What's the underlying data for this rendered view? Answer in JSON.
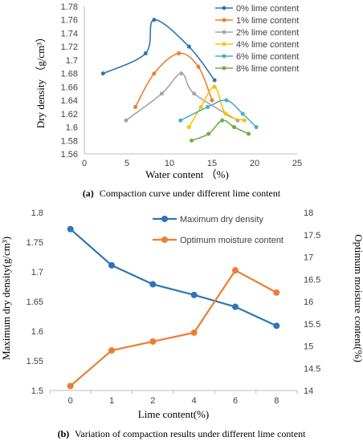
{
  "chart_data": [
    {
      "type": "scatter",
      "panel": "a",
      "caption_label": "(a)",
      "caption": "Compaction curve under different lime content",
      "xlabel": "Water content （%)",
      "ylabel": "Dry density （g/cm³）",
      "xlim": [
        0,
        25
      ],
      "ylim": [
        1.56,
        1.78
      ],
      "xticks": [
        "0",
        "5",
        "10",
        "15",
        "20",
        "25"
      ],
      "yticks": [
        "1.56",
        "1.58",
        "1.6",
        "1.62",
        "1.64",
        "1.66",
        "1.68",
        "1.7",
        "1.72",
        "1.74",
        "1.76",
        "1.78"
      ],
      "legend_position": "top-right",
      "series": [
        {
          "name": "0% lime content",
          "color": "#2e75b6",
          "points": [
            [
              2.2,
              1.68
            ],
            [
              7.2,
              1.71
            ],
            [
              8.2,
              1.76
            ],
            [
              12.3,
              1.72
            ],
            [
              15.3,
              1.67
            ]
          ]
        },
        {
          "name": "1% lime content",
          "color": "#ed7d31",
          "points": [
            [
              6.0,
              1.63
            ],
            [
              8.2,
              1.68
            ],
            [
              11.1,
              1.71
            ],
            [
              13.4,
              1.69
            ],
            [
              15.0,
              1.64
            ]
          ]
        },
        {
          "name": "2% lime content",
          "color": "#a5a5a5",
          "points": [
            [
              4.9,
              1.61
            ],
            [
              9.1,
              1.65
            ],
            [
              11.4,
              1.68
            ],
            [
              12.9,
              1.65
            ],
            [
              18.0,
              1.61
            ]
          ]
        },
        {
          "name": "4% lime content",
          "color": "#ffc000",
          "points": [
            [
              12.3,
              1.6
            ],
            [
              13.7,
              1.63
            ],
            [
              15.3,
              1.66
            ],
            [
              16.6,
              1.62
            ],
            [
              18.8,
              1.61
            ]
          ]
        },
        {
          "name": "6% lime content",
          "color": "#4bacc6",
          "points": [
            [
              11.3,
              1.61
            ],
            [
              14.5,
              1.63
            ],
            [
              16.7,
              1.64
            ],
            [
              18.6,
              1.62
            ],
            [
              20.2,
              1.6
            ]
          ]
        },
        {
          "name": "8% lime content",
          "color": "#70ad47",
          "points": [
            [
              12.6,
              1.58
            ],
            [
              14.6,
              1.59
            ],
            [
              16.2,
              1.61
            ],
            [
              17.6,
              1.6
            ],
            [
              19.3,
              1.59
            ]
          ]
        }
      ]
    },
    {
      "type": "line",
      "panel": "b",
      "caption_label": "(b)",
      "caption": "Variation of compaction results under different lime content",
      "xlabel": "Lime content(%)",
      "ylabel": "Maximum dry density(g/cm³)",
      "y2label": "Optimum moisture content(%)",
      "categories": [
        "0",
        "1",
        "2",
        "4",
        "6",
        "8"
      ],
      "ylim": [
        1.5,
        1.8
      ],
      "yticks": [
        "1.5",
        "1.55",
        "1.6",
        "1.65",
        "1.7",
        "1.75",
        "1.8"
      ],
      "y2lim": [
        14,
        18
      ],
      "y2ticks": [
        "14",
        "14.5",
        "15",
        "15.5",
        "16",
        "16.5",
        "17",
        "17.5",
        "18"
      ],
      "legend_position": "top-right",
      "series": [
        {
          "name": "Maximum dry density",
          "axis": "left",
          "color": "#2e75b6",
          "values": [
            1.772,
            1.711,
            1.679,
            1.661,
            1.641,
            1.609
          ]
        },
        {
          "name": "Optimum moisture content",
          "axis": "right",
          "color": "#ed7d31",
          "values": [
            14.1,
            14.9,
            15.1,
            15.3,
            16.7,
            16.2
          ]
        }
      ]
    }
  ]
}
